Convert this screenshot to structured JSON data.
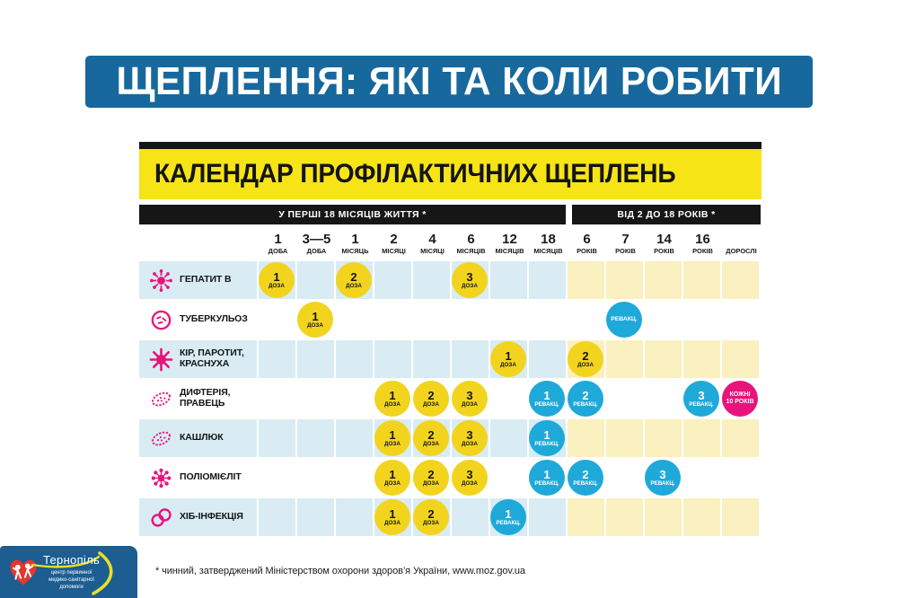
{
  "banner": {
    "title": "ЩЕПЛЕННЯ: ЯКІ ТА КОЛИ РОБИТИ"
  },
  "calendar": {
    "title": "КАЛЕНДАР ПРОФІЛАКТИЧНИХ ЩЕПЛЕНЬ",
    "sections": [
      {
        "label": "У ПЕРШІ 18 МІСЯЦІВ ЖИТТЯ *",
        "span": 8
      },
      {
        "label": "ВІД 2 ДО 18 РОКІВ *",
        "span": 5
      }
    ],
    "columns": [
      {
        "value": "1",
        "unit": "ДОБА"
      },
      {
        "value": "3—5",
        "unit": "ДОБА"
      },
      {
        "value": "1",
        "unit": "МІСЯЦЬ"
      },
      {
        "value": "2",
        "unit": "МІСЯЦІ"
      },
      {
        "value": "4",
        "unit": "МІСЯЦІ"
      },
      {
        "value": "6",
        "unit": "МІСЯЦІВ"
      },
      {
        "value": "12",
        "unit": "МІСЯЦІВ"
      },
      {
        "value": "18",
        "unit": "МІСЯЦІВ"
      },
      {
        "value": "6",
        "unit": "РОКІВ"
      },
      {
        "value": "7",
        "unit": "РОКІВ"
      },
      {
        "value": "14",
        "unit": "РОКІВ"
      },
      {
        "value": "16",
        "unit": "РОКІВ"
      },
      {
        "value": "",
        "unit": "ДОРОСЛІ"
      }
    ],
    "rows": [
      {
        "name": "ГЕПАТИТ В",
        "icon": "virus-burst",
        "tinted": true,
        "marks": [
          {
            "col": 0,
            "type": "dose",
            "top": "1",
            "bottom": "ДОЗА"
          },
          {
            "col": 2,
            "type": "dose",
            "top": "2",
            "bottom": "ДОЗА"
          },
          {
            "col": 5,
            "type": "dose",
            "top": "3",
            "bottom": "ДОЗА"
          }
        ]
      },
      {
        "name": "ТУБЕРКУЛЬОЗ",
        "icon": "ring-bacteria",
        "tinted": false,
        "marks": [
          {
            "col": 1,
            "type": "dose",
            "top": "1",
            "bottom": "ДОЗА"
          },
          {
            "col": 9,
            "type": "revacc",
            "top": "",
            "bottom": "РЕВАКЦ."
          }
        ]
      },
      {
        "name": "КІР, ПАРОТИТ,\nКРАСНУХА",
        "icon": "sun-virus",
        "tinted": true,
        "marks": [
          {
            "col": 6,
            "type": "dose",
            "top": "1",
            "bottom": "ДОЗА"
          },
          {
            "col": 8,
            "type": "dose",
            "top": "2",
            "bottom": "ДОЗА"
          }
        ]
      },
      {
        "name": "ДИФТЕРІЯ,\nПРАВЕЦЬ",
        "icon": "oval-bacterium",
        "tinted": false,
        "marks": [
          {
            "col": 3,
            "type": "dose",
            "top": "1",
            "bottom": "ДОЗА"
          },
          {
            "col": 4,
            "type": "dose",
            "top": "2",
            "bottom": "ДОЗА"
          },
          {
            "col": 5,
            "type": "dose",
            "top": "3",
            "bottom": "ДОЗА"
          },
          {
            "col": 7,
            "type": "revacc",
            "top": "1",
            "bottom": "РЕВАКЦ."
          },
          {
            "col": 8,
            "type": "revacc",
            "top": "2",
            "bottom": "РЕВАКЦ."
          },
          {
            "col": 11,
            "type": "revacc",
            "top": "3",
            "bottom": "РЕВАКЦ."
          },
          {
            "col": 12,
            "type": "every",
            "top": "КОЖНІ",
            "bottom": "10 РОКІВ"
          }
        ]
      },
      {
        "name": "КАШЛЮК",
        "icon": "oval-bacterium",
        "tinted": true,
        "marks": [
          {
            "col": 3,
            "type": "dose",
            "top": "1",
            "bottom": "ДОЗА"
          },
          {
            "col": 4,
            "type": "dose",
            "top": "2",
            "bottom": "ДОЗА"
          },
          {
            "col": 5,
            "type": "dose",
            "top": "3",
            "bottom": "ДОЗА"
          },
          {
            "col": 7,
            "type": "revacc",
            "top": "1",
            "bottom": "РЕВАКЦ."
          }
        ]
      },
      {
        "name": "ПОЛІОМІЄЛІТ",
        "icon": "flower-virus",
        "tinted": false,
        "marks": [
          {
            "col": 3,
            "type": "dose",
            "top": "1",
            "bottom": "ДОЗА"
          },
          {
            "col": 4,
            "type": "dose",
            "top": "2",
            "bottom": "ДОЗА"
          },
          {
            "col": 5,
            "type": "dose",
            "top": "3",
            "bottom": "ДОЗА"
          },
          {
            "col": 7,
            "type": "revacc",
            "top": "1",
            "bottom": "РЕВАКЦ."
          },
          {
            "col": 8,
            "type": "revacc",
            "top": "2",
            "bottom": "РЕВАКЦ."
          },
          {
            "col": 10,
            "type": "revacc",
            "top": "3",
            "bottom": "РЕВАКЦ."
          }
        ]
      },
      {
        "name": "ХІБ-ІНФЕКЦІЯ",
        "icon": "diplococcus",
        "tinted": true,
        "marks": [
          {
            "col": 3,
            "type": "dose",
            "top": "1",
            "bottom": "ДОЗА"
          },
          {
            "col": 4,
            "type": "dose",
            "top": "2",
            "bottom": "ДОЗА"
          },
          {
            "col": 6,
            "type": "revacc",
            "top": "1",
            "bottom": "РЕВАКЦ."
          }
        ]
      }
    ]
  },
  "footnote": "* чинний, затверджений Міністерством охорони здоров’я України, www.moz.gov.ua",
  "logo": {
    "city": "Тернопіль",
    "subtitle_lines": [
      "центр первинної",
      "медико-санітарної",
      "допомоги"
    ]
  },
  "colors": {
    "banner_blue": "#17689d",
    "header_yellow": "#f7e417",
    "bar_black": "#161616",
    "row_blue": "#d9ecf4",
    "row_yellow": "#fbf0bf",
    "dose_yellow": "#f2d41e",
    "revacc_cyan": "#1ea9d9",
    "magenta": "#e9137c",
    "logo_blue": "#1c5d92",
    "logo_yellow": "#e8df2b",
    "heart_red": "#e5372f"
  }
}
